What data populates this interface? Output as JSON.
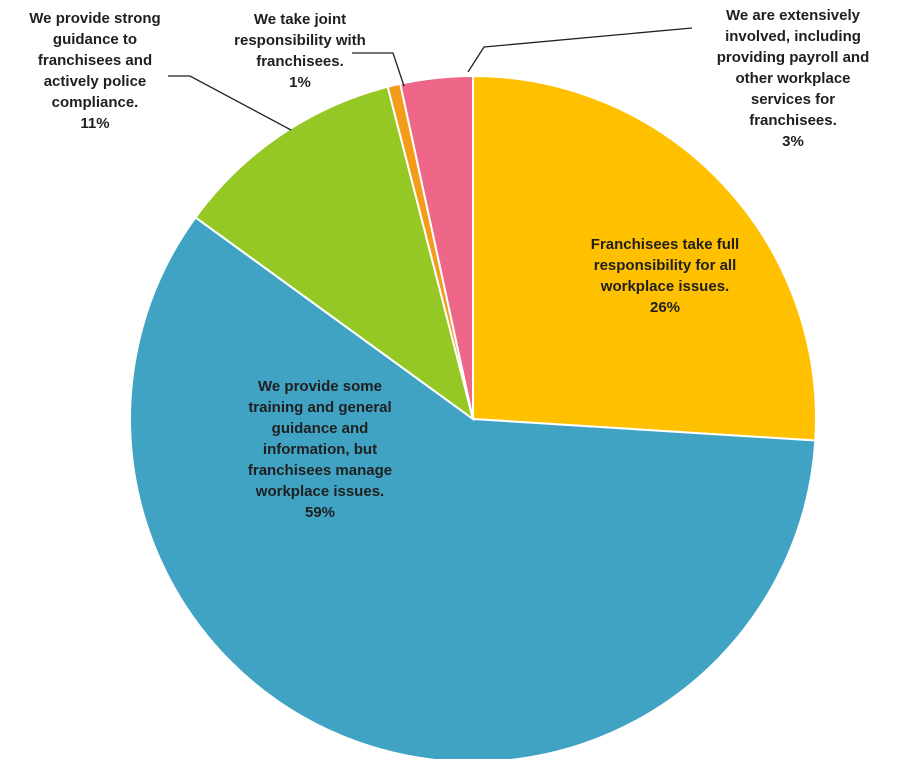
{
  "chart_data": {
    "type": "pie",
    "slices": [
      {
        "label_lines": [
          "Franchisees take full",
          "responsibility for all",
          "workplace issues."
        ],
        "percent_label": "26%",
        "value": 26,
        "color": "#FFC000"
      },
      {
        "label_lines": [
          "We provide some",
          "training and general",
          "guidance and",
          "information, but",
          "franchisees manage",
          "workplace issues."
        ],
        "percent_label": "59%",
        "value": 59,
        "color": "#40A3C3"
      },
      {
        "label_lines": [
          "We provide strong",
          "guidance to",
          "franchisees and",
          "actively police",
          "compliance."
        ],
        "percent_label": "11%",
        "value": 11,
        "color": "#96C825"
      },
      {
        "label_lines": [
          "We take joint",
          "responsibility with",
          "franchisees."
        ],
        "percent_label": "1%",
        "value": 0.6,
        "color": "#F39C1A"
      },
      {
        "label_lines": [
          "We are extensively",
          "involved, including",
          "providing payroll and",
          "other workplace",
          "services for",
          "franchisees."
        ],
        "percent_label": "3%",
        "value": 3.4,
        "color": "#EE6688"
      }
    ]
  }
}
